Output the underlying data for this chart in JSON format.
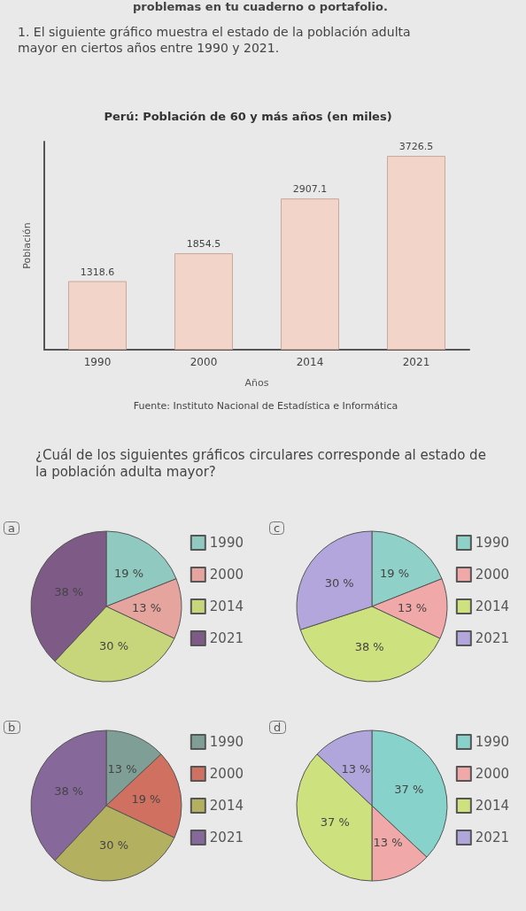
{
  "chart_data": [
    {
      "type": "bar",
      "title": "Perú: Población de 60 y más años (en miles)",
      "xlabel": "Años",
      "ylabel": "Población",
      "categories": [
        "1990",
        "2000",
        "2014",
        "2021"
      ],
      "values": [
        1318.6,
        1854.5,
        2907.1,
        3726.5
      ],
      "color": "#f2d4c8",
      "data_labels": true,
      "tick_labels": "x",
      "legend": false,
      "annotations": [
        "problemas en tu cuaderno o portafolio.",
        "1. El siguiente gráfico muestra el estado de la población adulta mayor en ciertos años entre 1990 y 2021.",
        "Fuente: Instituto Nacional de Estadística e Informática",
        "¿Cuál de los siguientes gráficos circulares corresponde al estado de la población adulta mayor?"
      ]
    },
    {
      "type": "pie",
      "title": "a",
      "categories": [
        "1990",
        "2000",
        "2014",
        "2021"
      ],
      "values": [
        19,
        13,
        30,
        38
      ],
      "value_labels": [
        "19 %",
        "13 %",
        "30 %",
        "38 %"
      ],
      "colors": [
        "#8fc9c0",
        "#e6a49f",
        "#c7d67a",
        "#7e5a86"
      ],
      "legend": "right"
    },
    {
      "type": "pie",
      "title": "c",
      "categories": [
        "1990",
        "2000",
        "2014",
        "2021"
      ],
      "values": [
        19,
        13,
        38,
        30
      ],
      "value_labels": [
        "19 %",
        "13 %",
        "38 %",
        "30 %"
      ],
      "colors": [
        "#8fd0c8",
        "#f0a8a8",
        "#cde27e",
        "#b3a6dc"
      ],
      "legend": "right"
    },
    {
      "type": "pie",
      "title": "b",
      "categories": [
        "1990",
        "2000",
        "2014",
        "2021"
      ],
      "values": [
        13,
        19,
        30,
        38
      ],
      "value_labels": [
        "13 %",
        "19 %",
        "30 %",
        "38 %"
      ],
      "colors": [
        "#7f9f96",
        "#d07060",
        "#b3b060",
        "#86689a"
      ],
      "legend": "right"
    },
    {
      "type": "pie",
      "title": "d",
      "categories": [
        "1990",
        "2000",
        "2014",
        "2021"
      ],
      "values": [
        37,
        13,
        37,
        13
      ],
      "value_labels": [
        "37 %",
        "13 %",
        "37 %",
        "13 %"
      ],
      "colors": [
        "#88d2cc",
        "#f0a8a8",
        "#cde27e",
        "#b0a6dc"
      ],
      "legend": "right"
    }
  ]
}
